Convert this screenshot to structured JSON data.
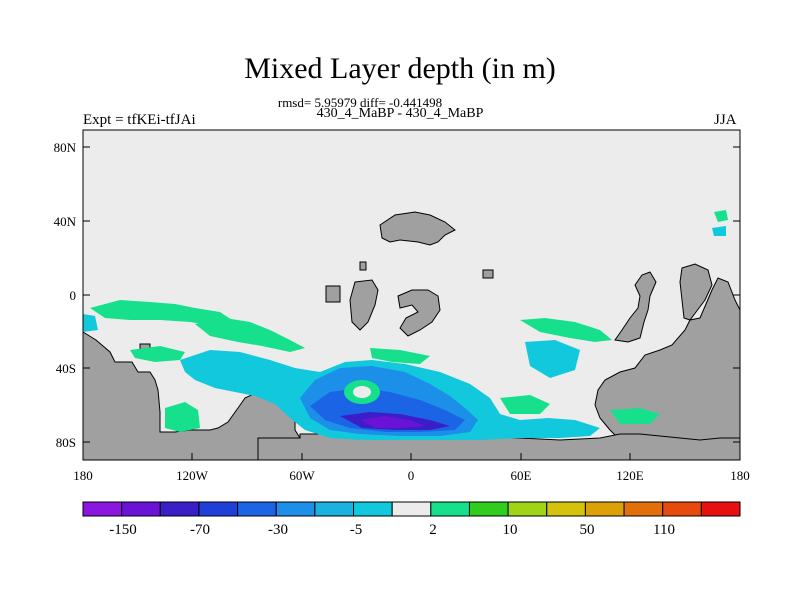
{
  "map": {
    "title": "Mixed Layer depth (in m)",
    "stats": "rmsd= 5.95979 diff= -0.441498",
    "cases": "430_4_MaBP - 430_4_MaBP",
    "left_label": "Expt = tfKEi-tfJAi",
    "right_label": "JJA",
    "lat_ticks": [
      "80N",
      "40N",
      "0",
      "40S",
      "80S"
    ],
    "lon_ticks": [
      "180",
      "120W",
      "60W",
      "0",
      "60E",
      "120E",
      "180"
    ]
  },
  "colorbar": {
    "labels": [
      "-150",
      "-70",
      "-30",
      "-5",
      "2",
      "10",
      "50",
      "110"
    ],
    "colors": [
      "#8a16e0",
      "#6a12d6",
      "#3a1fc8",
      "#1f3fd8",
      "#1c64e6",
      "#1c8fe8",
      "#1cb2e0",
      "#12c8dc",
      "#ececec",
      "#17e08c",
      "#30cc20",
      "#a0d416",
      "#d4c20c",
      "#dca008",
      "#e2700a",
      "#e64a0c",
      "#e61010"
    ]
  },
  "colors": {
    "land": "#a0a0a0",
    "ocean_default": "#ececec"
  }
}
